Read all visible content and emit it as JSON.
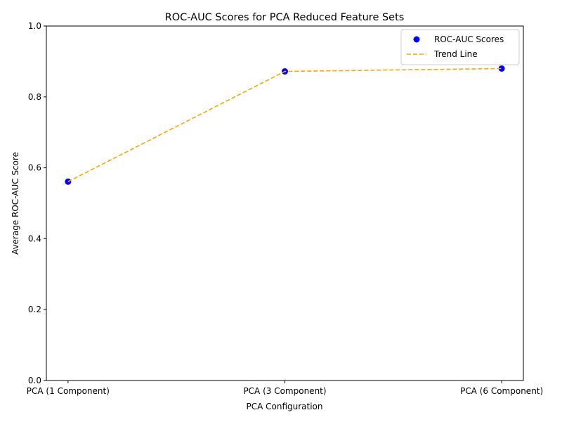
{
  "chart_data": {
    "type": "scatter",
    "title": "ROC-AUC Scores for PCA Reduced Feature Sets",
    "xlabel": "PCA Configuration",
    "ylabel": "Average ROC-AUC Score",
    "categories": [
      "PCA (1 Component)",
      "PCA (3 Component)",
      "PCA (6 Component)"
    ],
    "ylim": [
      0,
      1
    ],
    "yticks": [
      "0.0",
      "0.2",
      "0.4",
      "0.6",
      "0.8",
      "1.0"
    ],
    "series": [
      {
        "name": "ROC-AUC Scores",
        "kind": "scatter",
        "color": "#0000ff",
        "values": [
          0.561,
          0.872,
          0.88
        ]
      },
      {
        "name": "Trend Line",
        "kind": "line-dashed",
        "color": "#ffa500",
        "values": [
          0.561,
          0.872,
          0.88
        ]
      }
    ],
    "legend_position": "top-right",
    "grid": false
  }
}
